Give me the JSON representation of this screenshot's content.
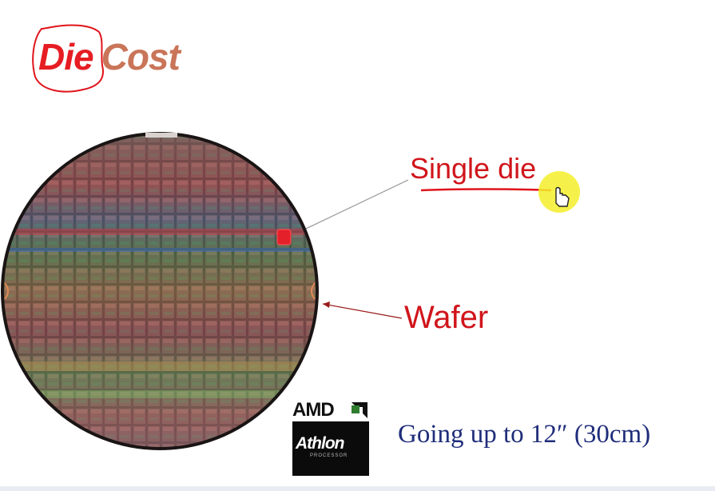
{
  "slide": {
    "title_word1": "Die",
    "title_word2": "Cost",
    "label_single_die": "Single die",
    "label_wafer": "Wafer",
    "caption": "Going up to 12″ (30cm)"
  },
  "logo": {
    "brand": "AMD",
    "product": "Athlon",
    "product_sub": "PROCESSOR"
  },
  "colors": {
    "accent_red": "#d0151b",
    "title_red": "#e61d24",
    "title_cost": "#c97559",
    "caption_navy": "#1f2d7a",
    "cursor_highlight": "#f5ee2a"
  },
  "icons": [
    "pointer-hand-icon",
    "amd-arrow-logo-icon"
  ]
}
